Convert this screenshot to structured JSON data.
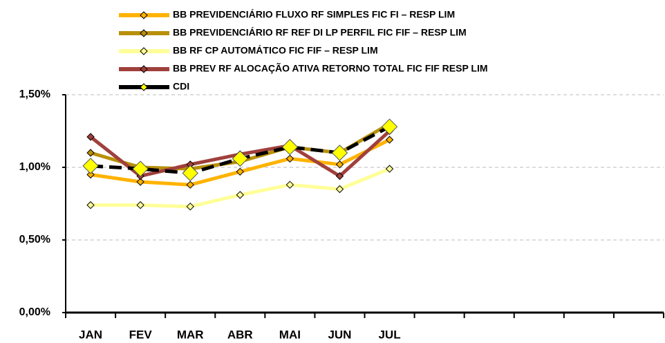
{
  "chart_data": {
    "type": "line",
    "categories": [
      "JAN",
      "FEV",
      "MAR",
      "ABR",
      "MAI",
      "JUN",
      "JUL",
      null,
      null,
      null,
      null,
      null
    ],
    "series": [
      {
        "name": "BB PREVIDENCIÁRIO FLUXO RF SIMPLES FIC FI – RESP LIM",
        "color": "#ffb300",
        "values": [
          0.95,
          0.9,
          0.88,
          0.97,
          1.06,
          1.02,
          1.19,
          null,
          null,
          null,
          null,
          null
        ]
      },
      {
        "name": "BB PREVIDENCIÁRIO RF REF DI LP PERFIL FIC FIF – RESP LIM",
        "color": "#b8900a",
        "values": [
          1.1,
          1.0,
          0.99,
          1.04,
          1.14,
          1.1,
          1.3,
          null,
          null,
          null,
          null,
          null
        ]
      },
      {
        "name": "BB RF CP AUTOMÁTICO FIC FIF – RESP LIM",
        "color": "#ffff99",
        "values": [
          0.74,
          0.74,
          0.73,
          0.81,
          0.88,
          0.85,
          0.99,
          null,
          null,
          null,
          null,
          null
        ]
      },
      {
        "name": "BB PREV RF ALOCAÇÃO ATIVA RETORNO TOTAL FIC FIF RESP LIM",
        "color": "#a0403c",
        "values": [
          1.21,
          0.94,
          1.02,
          1.09,
          1.15,
          0.94,
          1.25,
          null,
          null,
          null,
          null,
          null
        ]
      },
      {
        "name": "CDI",
        "color": "#000000",
        "marker_color": "#ffff00",
        "dashed": true,
        "values": [
          1.01,
          0.99,
          0.96,
          1.06,
          1.14,
          1.1,
          1.28,
          null,
          null,
          null,
          null,
          null
        ]
      }
    ],
    "ylim": [
      0,
      1.5
    ],
    "yticks": [
      {
        "value": 0,
        "label": "0,00%"
      },
      {
        "value": 0.5,
        "label": "0,50%"
      },
      {
        "value": 1.0,
        "label": "1,00%"
      },
      {
        "value": 1.5,
        "label": "1,50%"
      }
    ],
    "grid": true,
    "legend": "top"
  }
}
